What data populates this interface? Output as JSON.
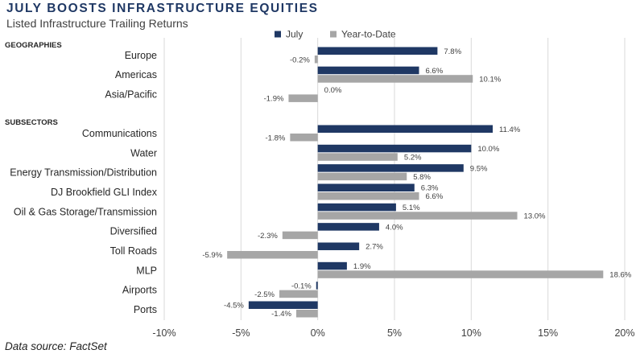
{
  "title": "JULY BOOSTS INFRASTRUCTURE EQUITIES",
  "subtitle": "Listed Infrastructure Trailing Returns",
  "source": "Data source: FactSet",
  "colors": {
    "july": "#1f3864",
    "ytd": "#a6a6a6",
    "grid": "#d9d9d9",
    "title": "#1f3864"
  },
  "chart_data": {
    "type": "bar",
    "orientation": "horizontal",
    "legend_position": "top",
    "grid": true,
    "xlim": [
      -10,
      20
    ],
    "x_ticks": [
      "-10%",
      "-5%",
      "0%",
      "5%",
      "10%",
      "15%",
      "20%"
    ],
    "tick_values": [
      -10,
      -5,
      0,
      5,
      10,
      15,
      20
    ],
    "series": [
      {
        "name": "July",
        "key": "july"
      },
      {
        "name": "Year-to-Date",
        "key": "ytd"
      }
    ],
    "groups": [
      {
        "name": "GEOGRAPHIES",
        "rows": [
          {
            "label": "Europe",
            "july": 7.8,
            "ytd": -0.2
          },
          {
            "label": "Americas",
            "july": 6.6,
            "ytd": 10.1
          },
          {
            "label": "Asia/Pacific",
            "july": 0.0,
            "ytd": -1.9
          }
        ]
      },
      {
        "name": "SUBSECTORS",
        "rows": [
          {
            "label": "Communications",
            "july": 11.4,
            "ytd": -1.8
          },
          {
            "label": "Water",
            "july": 10.0,
            "ytd": 5.2
          },
          {
            "label": "Energy Transmission/Distribution",
            "july": 9.5,
            "ytd": 5.8
          },
          {
            "label": "DJ Brookfield GLI Index",
            "july": 6.3,
            "ytd": 6.6
          },
          {
            "label": "Oil & Gas Storage/Transmission",
            "july": 5.1,
            "ytd": 13.0
          },
          {
            "label": "Diversified",
            "july": 4.0,
            "ytd": -2.3
          },
          {
            "label": "Toll Roads",
            "july": 2.7,
            "ytd": -5.9
          },
          {
            "label": "MLP",
            "july": 1.9,
            "ytd": 18.6
          },
          {
            "label": "Airports",
            "july": -0.1,
            "ytd": -2.5
          },
          {
            "label": "Ports",
            "july": -4.5,
            "ytd": -1.4
          }
        ]
      }
    ]
  }
}
